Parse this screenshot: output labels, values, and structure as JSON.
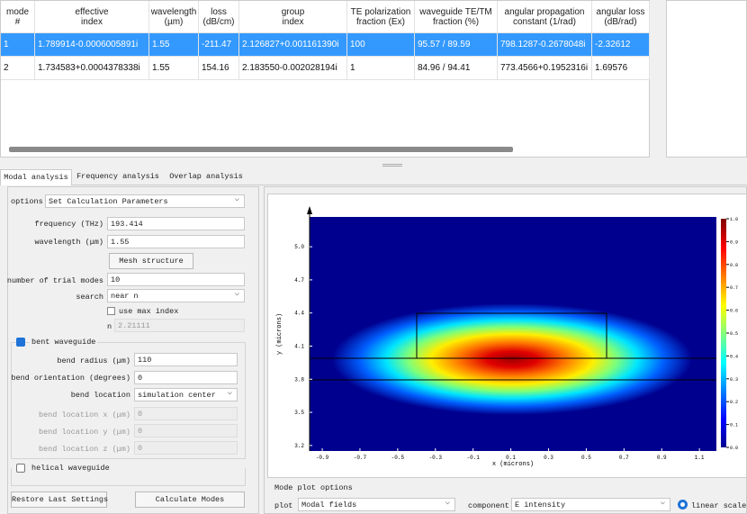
{
  "table": {
    "headers": [
      "mode #",
      "effective\nindex",
      "wavelength\n(µm)",
      "loss\n(dB/cm)",
      "group\nindex",
      "TE polarization\nfraction (Ex)",
      "waveguide TE/TM\nfraction (%)",
      "angular propagation\nconstant (1/rad)",
      "angular loss\n(dB/rad)"
    ],
    "rows": [
      [
        "1",
        "1.789914-0.0006005891i",
        "1.55",
        "-211.47",
        "2.126827+0.001161390i",
        "100",
        "95.57 / 89.59",
        "798.1287-0.2678048i",
        "-2.32612"
      ],
      [
        "2",
        "1.734583+0.0004378338i",
        "1.55",
        "154.16",
        "2.183550-0.002028194i",
        "1",
        "84.96 / 94.41",
        "773.4566+0.1952316i",
        "1.69576"
      ]
    ]
  },
  "tabs": [
    "Modal analysis",
    "Frequency analysis",
    "Overlap analysis"
  ],
  "settings": {
    "options_label": "options",
    "options_value": "Set Calculation Parameters",
    "frequency_label": "frequency (THz)",
    "frequency": "193.414",
    "wavelength_label": "wavelength (μm)",
    "wavelength": "1.55",
    "mesh_button": "Mesh structure",
    "trial_modes_label": "number of trial modes",
    "trial_modes": "10",
    "search_label": "search",
    "search_value": "near n",
    "use_max_index": "use max index",
    "n_label": "n",
    "n_value": "2.21111",
    "bent_waveguide": "bent waveguide",
    "bend_radius_label": "bend radius (μm)",
    "bend_radius": "110",
    "bend_orientation_label": "bend orientation (degrees)",
    "bend_orientation": "0",
    "bend_location_label": "bend location",
    "bend_location": "simulation center",
    "bend_x_label": "bend location x (μm)",
    "bend_x": "0",
    "bend_y_label": "bend location y (μm)",
    "bend_y": "0",
    "bend_z_label": "bend location z (μm)",
    "bend_z": "0",
    "helical_waveguide": "helical waveguide",
    "restore_button": "Restore Last Settings",
    "calculate_button": "Calculate Modes"
  },
  "plot": {
    "y_label": "y (microns)",
    "x_label": "x (microns)",
    "xlim": [
      -0.967,
      1.19
    ],
    "ylim": [
      3.15,
      5.27
    ],
    "xticks": [
      -0.9,
      -0.7,
      -0.5,
      -0.3,
      -0.1,
      0.1,
      0.3,
      0.5,
      0.7,
      0.9,
      1.1
    ],
    "yticks": [
      3.2,
      3.5,
      3.8,
      4.1,
      4.4,
      4.7,
      {
        "value": 5,
        "label": "5.0"
      }
    ],
    "colorbar_lim": [
      0,
      1
    ],
    "colorbar_ticks": [
      {
        "value": 0,
        "label": "0.0"
      },
      0.1,
      0.2,
      0.3,
      0.4,
      0.5,
      0.6,
      0.7,
      0.8,
      0.9,
      {
        "value": 1,
        "label": "1.0"
      }
    ]
  },
  "mode_plot_options": {
    "title": "Mode plot options",
    "plot_label": "plot",
    "plot_value": "Modal fields",
    "component_label": "component",
    "component_value": "E intensity",
    "scale": "linear scale"
  }
}
